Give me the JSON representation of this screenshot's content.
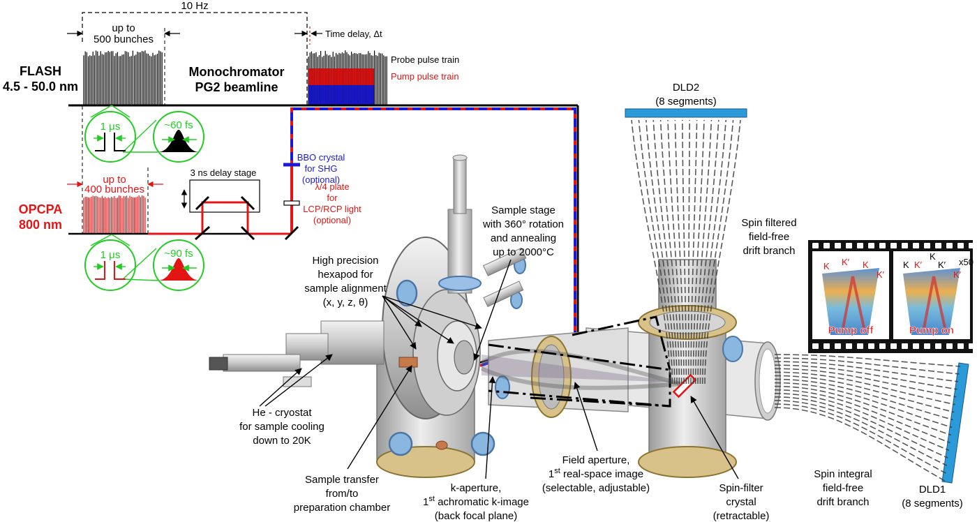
{
  "labels": {
    "rep_rate": "10 Hz",
    "flash_bunches_line1": "up to",
    "flash_bunches_line2": "500 bunches",
    "flash_line1": "FLASH",
    "flash_line2": "4.5 - 50.0 nm",
    "mono_line1": "Monochromator",
    "mono_line2": "PG2 beamline",
    "time_delay": "Time delay, Δt",
    "probe_train": "Probe pulse train",
    "pump_train": "Pump pulse train",
    "flash_spacing": "1 μs",
    "flash_duration": "~60 fs",
    "opcpa_bunches_line1": "up to",
    "opcpa_bunches_line2": "400 bunches",
    "opcpa_line1": "OPCPA",
    "opcpa_line2": "800 nm",
    "delay_stage": "3 ns delay stage",
    "opcpa_spacing": "1 μs",
    "opcpa_duration": "~90 fs",
    "bbo_line1": "BBO crystal",
    "bbo_line2": "for SHG",
    "bbo_line3": "(optional)",
    "wp_line1": "λ/4 plate",
    "wp_line2": "for",
    "wp_line3": "LCP/RCP light",
    "wp_line4": "(optional)",
    "stage_line1": "Sample stage",
    "stage_line2": "with 360° rotation",
    "stage_line3": "and annealing",
    "stage_line4": "up to 2000°C",
    "hex_line1": "High precision",
    "hex_line2": "hexapod for",
    "hex_line3": "sample alignment",
    "hex_line4": "(x, y, z, θ)",
    "dld2_line1": "DLD2",
    "dld2_line2": "(8 segments)",
    "spinfilt_line1": "Spin filtered",
    "spinfilt_line2": "field-free",
    "spinfilt_line3": "drift branch",
    "pump_off": "Pump off",
    "pump_on": "Pump on",
    "k_label": "K",
    "kp_label": "K′",
    "x50": "x50",
    "cryo_line1": "He - cryostat",
    "cryo_line2": "for sample cooling",
    "cryo_line3": "down to 20K",
    "transfer_line1": "Sample transfer",
    "transfer_line2": "from/to",
    "transfer_line3": "preparation chamber",
    "kap_line1": "k-aperture,",
    "kap_line2_pre": "1",
    "kap_line2_sup": "st",
    "kap_line2_post": " achromatic k-image",
    "kap_line3": "(back focal plane)",
    "fap_line1": "Field aperture,",
    "fap_line2_pre": "1",
    "fap_line2_sup": "st",
    "fap_line2_post": " real-space image",
    "fap_line3": "(selectable, adjustable)",
    "sfc_line1": "Spin-filter",
    "sfc_line2": "crystal",
    "sfc_line3": "(retractable)",
    "integ_line1": "Spin integral",
    "integ_line2": "field-free",
    "integ_line3": "drift branch",
    "dld1_line1": "DLD1",
    "dld1_line2": "(8 segments)"
  },
  "colors": {
    "probe": "#000000",
    "pump": "#e41414",
    "shg": "#1a1ad6",
    "zoom": "#22cc22",
    "detector": "#2a9ad8"
  }
}
